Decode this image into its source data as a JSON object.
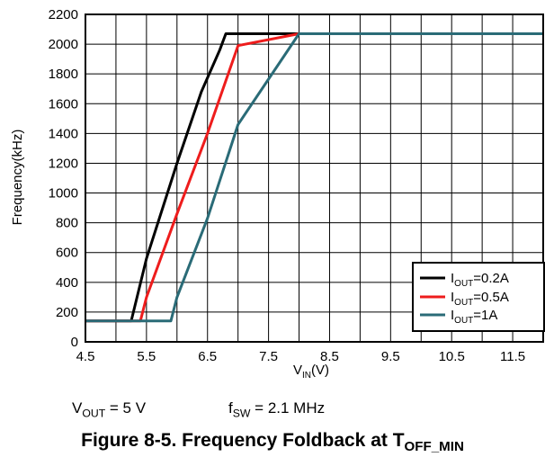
{
  "chart_data": {
    "type": "line",
    "xlabel": {
      "main": "V",
      "sub": "IN",
      "rest": "(V)"
    },
    "ylabel": "Frequency(kHz)",
    "xlim": [
      4.5,
      12
    ],
    "ylim": [
      0,
      2200
    ],
    "xticks": [
      4.5,
      5.5,
      6.5,
      7.5,
      8.5,
      9.5,
      10.5,
      11.5
    ],
    "xtick_labels": [
      "4.5",
      "5.5",
      "6.5",
      "7.5",
      "8.5",
      "9.5",
      "10.5",
      "11.5"
    ],
    "yticks": [
      0,
      200,
      400,
      600,
      800,
      1000,
      1200,
      1400,
      1600,
      1800,
      2000,
      2200
    ],
    "ytick_labels": [
      "0",
      "200",
      "400",
      "600",
      "800",
      "1000",
      "1200",
      "1400",
      "1600",
      "1800",
      "2000",
      "2200"
    ],
    "grid": true,
    "grid_step_x": 0.5,
    "legend_position": "bottom-right",
    "series": [
      {
        "name": "0.2A",
        "legend": {
          "main": "I",
          "sub": "OUT",
          "rest": "=0.2A"
        },
        "color": "#000000",
        "x": [
          4.5,
          5.25,
          5.5,
          6.0,
          6.4,
          6.7,
          6.8,
          8.0,
          12.0
        ],
        "y": [
          140,
          140,
          560,
          1200,
          1680,
          1960,
          2070,
          2070,
          2070
        ]
      },
      {
        "name": "0.5A",
        "legend": {
          "main": "I",
          "sub": "OUT",
          "rest": "=0.5A"
        },
        "color": "#ee1c1c",
        "x": [
          4.5,
          5.4,
          5.5,
          6.0,
          6.5,
          7.0,
          8.0,
          12.0
        ],
        "y": [
          140,
          140,
          300,
          860,
          1400,
          1990,
          2070,
          2070
        ]
      },
      {
        "name": "1A",
        "legend": {
          "main": "I",
          "sub": "OUT",
          "rest": "=1A"
        },
        "color": "#2a6b77",
        "x": [
          4.5,
          5.9,
          6.0,
          6.5,
          7.0,
          8.0,
          12.0
        ],
        "y": [
          140,
          140,
          300,
          830,
          1460,
          2070,
          2070
        ]
      }
    ]
  },
  "conditions": {
    "vout": {
      "main": "V",
      "sub": "OUT",
      "rest": " = 5 V"
    },
    "fsw": {
      "main": "f",
      "sub": "SW",
      "rest": " = 2.1 MHz"
    }
  },
  "caption": {
    "main": "Figure 8-5. Frequency Foldback at T",
    "sub": "OFF_MIN"
  }
}
